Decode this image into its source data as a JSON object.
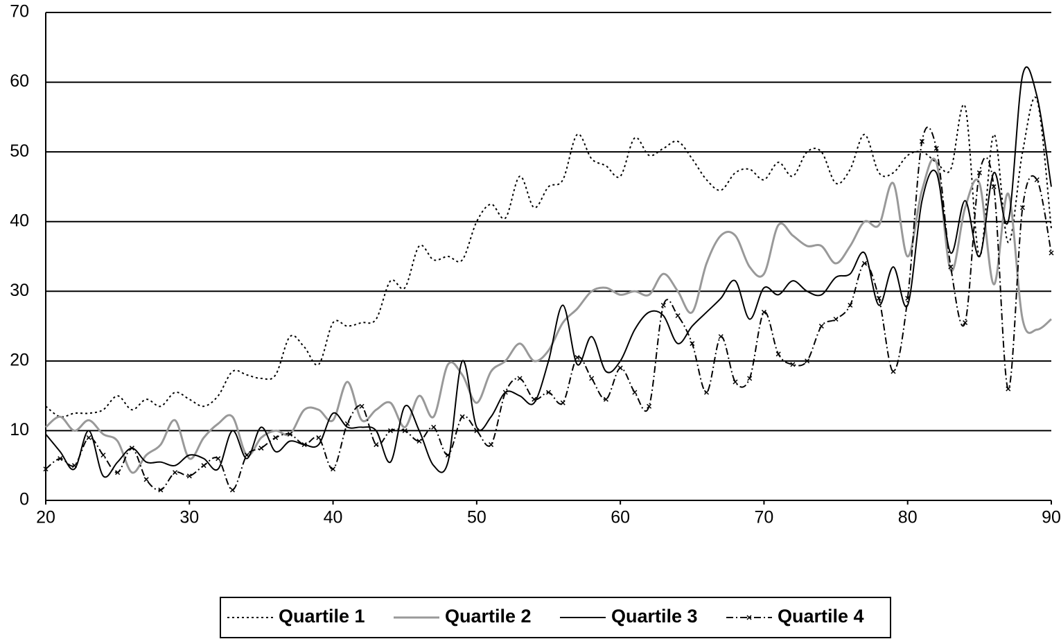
{
  "chart_data": {
    "type": "line",
    "x": [
      20,
      21,
      22,
      23,
      24,
      25,
      26,
      27,
      28,
      29,
      30,
      31,
      32,
      33,
      34,
      35,
      36,
      37,
      38,
      39,
      40,
      41,
      42,
      43,
      44,
      45,
      46,
      47,
      48,
      49,
      50,
      51,
      52,
      53,
      54,
      55,
      56,
      57,
      58,
      59,
      60,
      61,
      62,
      63,
      64,
      65,
      66,
      67,
      68,
      69,
      70,
      71,
      72,
      73,
      74,
      75,
      76,
      77,
      78,
      79,
      80,
      81,
      82,
      83,
      84,
      85,
      86,
      87,
      88,
      89,
      90
    ],
    "xlim": [
      20,
      90
    ],
    "xticks": [
      20,
      30,
      40,
      50,
      60,
      70,
      80,
      90
    ],
    "ylim": [
      0,
      70
    ],
    "yticks": [
      0,
      10,
      20,
      30,
      40,
      50,
      60,
      70
    ],
    "grid": true,
    "legend": "bottom",
    "series": [
      {
        "name": "Quartile 1",
        "color": "#000000",
        "line_style": "dotted",
        "values": [
          13.5,
          12,
          12.5,
          12.5,
          13,
          15,
          13,
          14.5,
          13.5,
          15.5,
          14.5,
          13.5,
          15,
          18.5,
          18,
          17.5,
          18,
          23.5,
          22,
          19.5,
          25.5,
          25,
          25.5,
          26,
          31.5,
          30.5,
          36.5,
          34.5,
          35,
          34.5,
          40,
          42.5,
          40.5,
          46.5,
          42,
          45,
          46,
          52.5,
          49,
          48,
          46.5,
          52,
          49.5,
          50.5,
          51.5,
          49,
          46,
          44.5,
          47,
          47.5,
          46,
          48.5,
          46.5,
          50,
          50,
          45.5,
          47.5,
          52.5,
          47,
          47,
          49.5,
          50,
          48.5,
          47.5,
          56.5,
          35,
          52.5,
          37,
          50,
          57.5,
          39
        ]
      },
      {
        "name": "Quartile 2",
        "color": "#999999",
        "line_style": "solid",
        "values": [
          10.5,
          12,
          10,
          11.5,
          9.5,
          8.5,
          4,
          6.5,
          8,
          11.5,
          6,
          9,
          11,
          12,
          6.5,
          9,
          10,
          9.5,
          13,
          13,
          11.5,
          17,
          11.5,
          13,
          14,
          10.5,
          15,
          12,
          19.5,
          18,
          14,
          18.5,
          20,
          22.5,
          20,
          21.5,
          25.5,
          27.5,
          30,
          30.5,
          29.5,
          30,
          29.5,
          32.5,
          30,
          27,
          34,
          38,
          38,
          33.5,
          32.5,
          39.5,
          38,
          36.5,
          36.5,
          34,
          36.5,
          40,
          39.5,
          45.5,
          35,
          44.5,
          48.5,
          33,
          42,
          45.5,
          31,
          44,
          26,
          24.5,
          26
        ]
      },
      {
        "name": "Quartile 3",
        "color": "#000000",
        "line_style": "solid",
        "values": [
          9.5,
          7,
          4.5,
          10,
          3.5,
          5.5,
          7.5,
          5.5,
          5.5,
          5,
          6.5,
          6,
          4.5,
          10,
          6,
          10.5,
          7,
          8.5,
          8,
          8,
          12.5,
          10.5,
          10.5,
          10,
          5.5,
          13.5,
          10,
          5,
          5.5,
          20,
          10.5,
          12,
          15.5,
          15,
          14,
          20,
          28,
          19.5,
          23.5,
          18.5,
          20,
          24.5,
          27,
          26.5,
          22.5,
          25,
          27,
          29,
          31.5,
          26,
          30.5,
          29.5,
          31.5,
          30,
          29.5,
          32,
          32.5,
          35.5,
          28,
          33.5,
          28,
          43,
          47,
          35.5,
          43,
          35,
          47,
          40,
          61,
          58,
          45
        ]
      },
      {
        "name": "Quartile 4",
        "color": "#000000",
        "line_style": "dash-dot",
        "marker": "x",
        "values": [
          4.5,
          6,
          5,
          9,
          6.5,
          4,
          7.5,
          3,
          1.5,
          4,
          3.5,
          5,
          6,
          1.5,
          6.5,
          7.5,
          9,
          9.5,
          8,
          9,
          4.5,
          11,
          13.5,
          8,
          10,
          10,
          8.5,
          10.5,
          6.5,
          12,
          10,
          8,
          15.5,
          17.5,
          14.5,
          15.5,
          14,
          20.5,
          17.5,
          14.5,
          19,
          15.5,
          13.5,
          28,
          26.5,
          22.5,
          15.5,
          23.5,
          17,
          17.5,
          27,
          21,
          19.5,
          20,
          25,
          26,
          28,
          34,
          29,
          18.5,
          29,
          51.5,
          50.5,
          33.5,
          25.5,
          47,
          45,
          16,
          42,
          46,
          35.5
        ]
      }
    ]
  }
}
